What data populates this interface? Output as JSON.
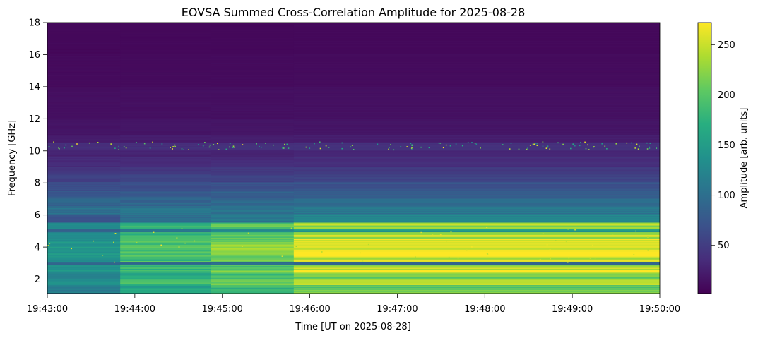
{
  "chart_data": {
    "type": "heatmap",
    "title": "EOVSA Summed Cross-Correlation Amplitude for 2025-08-28",
    "xlabel": "Time [UT on 2025-08-28]",
    "ylabel": "Frequency [GHz]",
    "colorbar_label": "Amplitude [arb. units]",
    "colormap": "viridis",
    "x_range_seconds": [
      0,
      420
    ],
    "x_ticks": [
      {
        "t": 0,
        "label": "19:43:00"
      },
      {
        "t": 60,
        "label": "19:44:00"
      },
      {
        "t": 120,
        "label": "19:45:00"
      },
      {
        "t": 180,
        "label": "19:46:00"
      },
      {
        "t": 240,
        "label": "19:47:00"
      },
      {
        "t": 300,
        "label": "19:48:00"
      },
      {
        "t": 360,
        "label": "19:49:00"
      },
      {
        "t": 420,
        "label": "19:50:00"
      }
    ],
    "ylim": [
      1.1,
      18
    ],
    "y_ticks": [
      {
        "v": 2,
        "label": "2"
      },
      {
        "v": 4,
        "label": "4"
      },
      {
        "v": 6,
        "label": "6"
      },
      {
        "v": 8,
        "label": "8"
      },
      {
        "v": 10,
        "label": "10"
      },
      {
        "v": 12,
        "label": "12"
      },
      {
        "v": 14,
        "label": "14"
      },
      {
        "v": 16,
        "label": "16"
      },
      {
        "v": 18,
        "label": "18"
      }
    ],
    "clim": [
      2,
      272
    ],
    "colorbar_ticks": [
      {
        "v": 50,
        "label": "50"
      },
      {
        "v": 100,
        "label": "100"
      },
      {
        "v": 150,
        "label": "150"
      },
      {
        "v": 200,
        "label": "200"
      },
      {
        "v": 250,
        "label": "250"
      }
    ],
    "time_segments": [
      {
        "t0": 0,
        "t1": 50,
        "level": 0.55
      },
      {
        "t0": 50,
        "t1": 112,
        "level": 0.75
      },
      {
        "t0": 112,
        "t1": 169,
        "level": 0.85
      },
      {
        "t0": 169,
        "t1": 420,
        "level": 1.0
      }
    ],
    "frequency_profile": [
      {
        "f0": 1.1,
        "f1": 1.6,
        "amp": 210
      },
      {
        "f0": 1.6,
        "f1": 2.0,
        "amp": 250
      },
      {
        "f0": 2.0,
        "f1": 2.4,
        "amp": 215
      },
      {
        "f0": 2.4,
        "f1": 2.6,
        "amp": 260
      },
      {
        "f0": 2.6,
        "f1": 2.85,
        "amp": 240
      },
      {
        "f0": 2.85,
        "f1": 3.05,
        "amp": 100
      },
      {
        "f0": 3.05,
        "f1": 3.5,
        "amp": 255
      },
      {
        "f0": 3.5,
        "f1": 4.1,
        "amp": 262
      },
      {
        "f0": 4.1,
        "f1": 4.5,
        "amp": 255
      },
      {
        "f0": 4.5,
        "f1": 4.9,
        "amp": 245
      },
      {
        "f0": 4.9,
        "f1": 5.1,
        "amp": 150
      },
      {
        "f0": 5.1,
        "f1": 5.5,
        "amp": 235
      },
      {
        "f0": 5.5,
        "f1": 6.0,
        "amp": 130
      },
      {
        "f0": 6.0,
        "f1": 6.5,
        "amp": 110
      },
      {
        "f0": 6.5,
        "f1": 7.0,
        "amp": 95
      },
      {
        "f0": 7.0,
        "f1": 7.5,
        "amp": 85
      },
      {
        "f0": 7.5,
        "f1": 8.0,
        "amp": 72
      },
      {
        "f0": 8.0,
        "f1": 8.5,
        "amp": 58
      },
      {
        "f0": 8.5,
        "f1": 9.0,
        "amp": 48
      },
      {
        "f0": 9.0,
        "f1": 9.6,
        "amp": 38
      },
      {
        "f0": 9.6,
        "f1": 10.0,
        "amp": 30
      },
      {
        "f0": 10.0,
        "f1": 10.5,
        "amp": 40
      },
      {
        "f0": 10.5,
        "f1": 11.0,
        "amp": 25
      },
      {
        "f0": 11.0,
        "f1": 12.0,
        "amp": 18
      },
      {
        "f0": 12.0,
        "f1": 14.0,
        "amp": 14
      },
      {
        "f0": 14.0,
        "f1": 16.0,
        "amp": 10
      },
      {
        "f0": 16.0,
        "f1": 18.0,
        "amp": 8
      }
    ]
  }
}
